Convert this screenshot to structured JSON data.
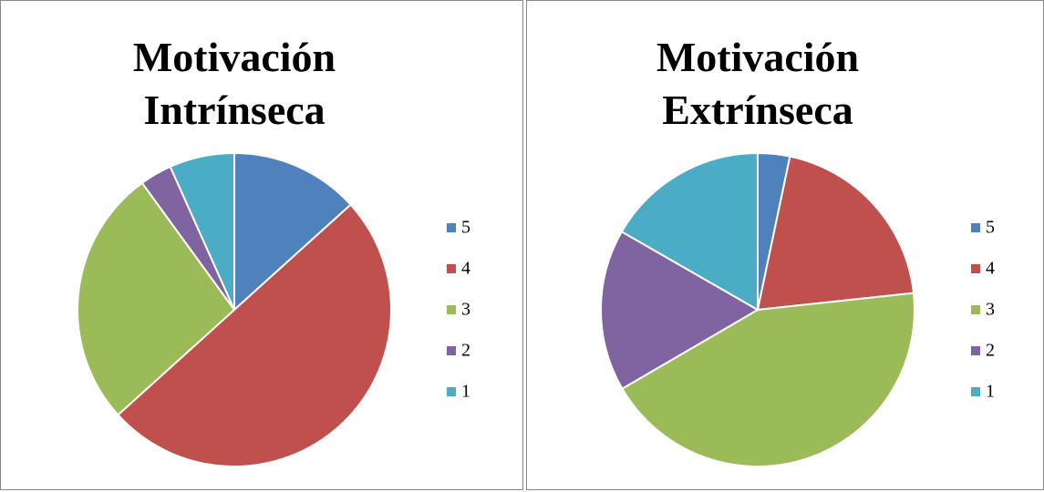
{
  "chart_data": [
    {
      "type": "pie",
      "title": "Motivación Intrínseca",
      "categories": [
        "5",
        "4",
        "3",
        "2",
        "1"
      ],
      "values": [
        13.3,
        50,
        26.7,
        3.3,
        6.7
      ],
      "colors": [
        "#4f81bd",
        "#c0504d",
        "#9bbb59",
        "#8064a2",
        "#4bacc6"
      ],
      "legend": "right"
    },
    {
      "type": "pie",
      "title": "Motivación Extrínseca",
      "categories": [
        "5",
        "4",
        "3",
        "2",
        "1"
      ],
      "values": [
        3.3,
        20,
        43.3,
        16.7,
        16.7
      ],
      "colors": [
        "#4f81bd",
        "#c0504d",
        "#9bbb59",
        "#8064a2",
        "#4bacc6"
      ],
      "legend": "right"
    }
  ]
}
